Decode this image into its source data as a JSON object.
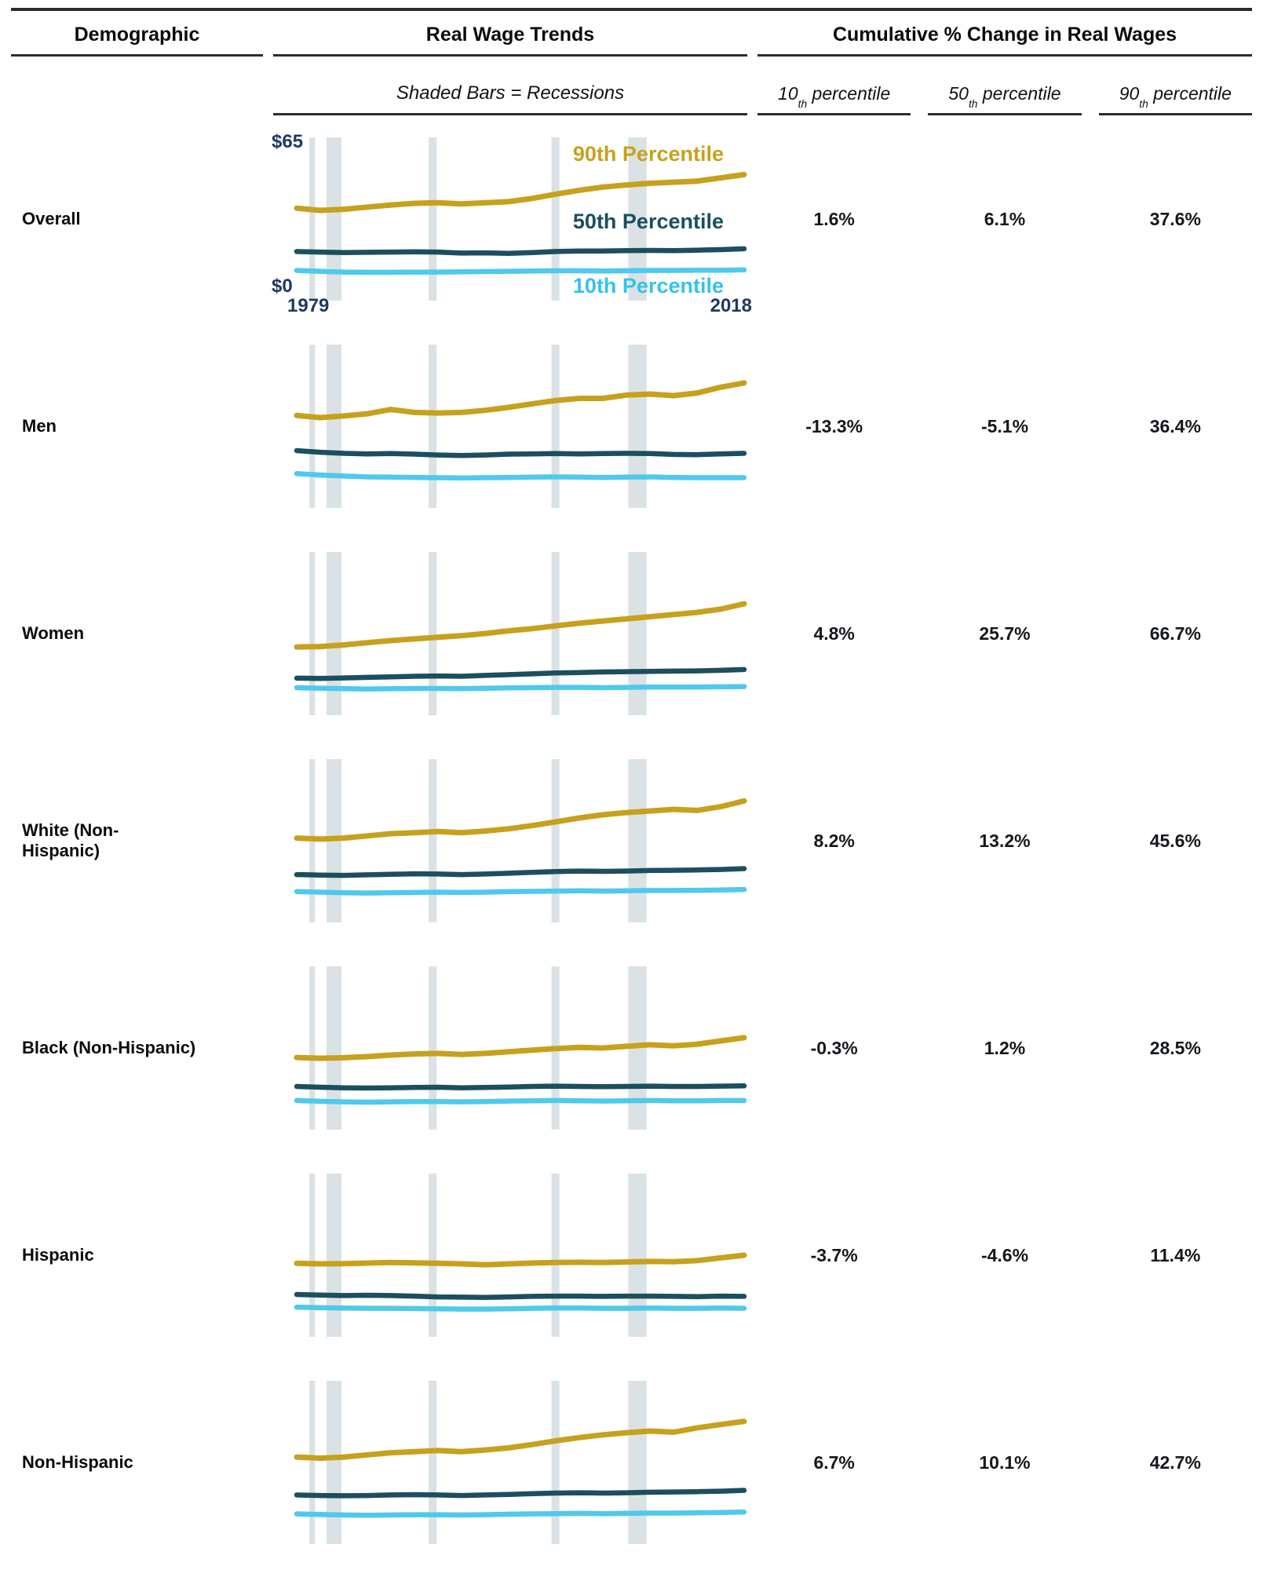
{
  "header": {
    "demographic": "Demographic",
    "trends": "Real Wage Trends",
    "cumulative": "Cumulative % Change in Real Wages"
  },
  "subheader": {
    "note": "Shaded Bars = Recessions"
  },
  "cum_cols": [
    {
      "base": "10",
      "sup": "th",
      "rest": " percentile"
    },
    {
      "base": "50",
      "sup": "th",
      "rest": " percentile"
    },
    {
      "base": "90",
      "sup": "th",
      "rest": " percentile"
    }
  ],
  "series_labels": {
    "p90": "90th Percentile",
    "p50": "50th Percentile",
    "p10": "10th Percentile"
  },
  "colors": {
    "gold": "#c7a11e",
    "teal": "#1b4f5e",
    "cyan": "#4fc9ed",
    "navy": "#1f3864",
    "band": "#dbe2e6",
    "rule": "#2c2c2c"
  },
  "chart_data": {
    "type": "line",
    "layout": "small-multiples, one sparkline chart per demographic row, shared x-axis 1979-2018",
    "x": {
      "min": 1979,
      "max": 2018,
      "label_start": "1979",
      "label_end": "2018"
    },
    "y": {
      "min": 0,
      "max": 65,
      "label_top": "$65",
      "label_bottom": "$0",
      "unit": "real hourly wage (dollars)"
    },
    "grid": false,
    "recessions_note": "Shaded Bars = Recessions",
    "recession_bands": [
      [
        1980.1,
        1980.6
      ],
      [
        1981.6,
        1982.9
      ],
      [
        1990.5,
        1991.2
      ],
      [
        2001.2,
        2001.9
      ],
      [
        2007.9,
        2009.5
      ]
    ],
    "series_names": [
      "10th Percentile",
      "50th Percentile",
      "90th Percentile"
    ],
    "rows": [
      {
        "label_lines": [
          "Overall"
        ],
        "annotated": true,
        "pct_change": {
          "p10": "1.6%",
          "p50": "6.1%",
          "p90": "37.6%"
        },
        "series": {
          "p90": [
            33,
            32.2,
            32.6,
            33.4,
            34.2,
            34.8,
            35,
            34.6,
            35,
            35.4,
            36.6,
            38.2,
            39.6,
            40.8,
            41.6,
            42.2,
            42.6,
            43,
            44.2,
            45.4
          ],
          "p50": [
            17,
            16.8,
            16.6,
            16.7,
            16.8,
            16.9,
            16.8,
            16.4,
            16.5,
            16.3,
            16.6,
            17,
            17.2,
            17.2,
            17.3,
            17.4,
            17.3,
            17.5,
            17.7,
            18
          ],
          "p10": [
            10,
            9.7,
            9.4,
            9.3,
            9.3,
            9.4,
            9.4,
            9.5,
            9.6,
            9.7,
            9.8,
            9.9,
            9.9,
            9.8,
            9.9,
            10,
            10,
            10.1,
            10.1,
            10.2
          ]
        }
      },
      {
        "label_lines": [
          "Men"
        ],
        "annotated": false,
        "pct_change": {
          "p10": "-13.3%",
          "p50": "-5.1%",
          "p90": "36.4%"
        },
        "series": {
          "p90": [
            33,
            32.2,
            32.8,
            33.6,
            35.2,
            34.1,
            33.9,
            34.1,
            34.9,
            36,
            37.3,
            38.5,
            39.3,
            39.3,
            40.5,
            40.9,
            40.3,
            41.3,
            43.4,
            45
          ],
          "p50": [
            20,
            19.4,
            19,
            18.8,
            18.9,
            18.7,
            18.4,
            18.2,
            18.4,
            18.7,
            18.8,
            18.9,
            18.8,
            18.9,
            19,
            18.9,
            18.6,
            18.5,
            18.8,
            19
          ],
          "p10": [
            11.5,
            11,
            10.6,
            10.3,
            10.2,
            10.1,
            10,
            9.9,
            10,
            10.1,
            10.2,
            10.3,
            10.2,
            10.1,
            10.2,
            10.3,
            10.1,
            10,
            10,
            10
          ]
        }
      },
      {
        "label_lines": [
          "Women"
        ],
        "annotated": false,
        "pct_change": {
          "p10": "4.8%",
          "p50": "25.7%",
          "p90": "66.7%"
        },
        "series": {
          "p90": [
            24,
            24.2,
            24.8,
            25.6,
            26.4,
            27,
            27.6,
            28.2,
            29,
            30,
            30.8,
            31.8,
            32.8,
            33.6,
            34.4,
            35.2,
            36,
            36.8,
            38,
            40
          ],
          "p50": [
            12.5,
            12.4,
            12.6,
            12.8,
            13,
            13.2,
            13.3,
            13.2,
            13.5,
            13.8,
            14.1,
            14.4,
            14.6,
            14.8,
            14.9,
            15,
            15.1,
            15.2,
            15.4,
            15.7
          ],
          "p10": [
            9,
            8.8,
            8.6,
            8.5,
            8.6,
            8.7,
            8.7,
            8.6,
            8.8,
            8.9,
            9,
            9.1,
            9.1,
            9,
            9.1,
            9.2,
            9.2,
            9.2,
            9.3,
            9.4
          ]
        }
      },
      {
        "label_lines": [
          "White (Non-",
          "Hispanic)"
        ],
        "annotated": false,
        "pct_change": {
          "p10": "8.2%",
          "p50": "13.2%",
          "p90": "45.6%"
        },
        "series": {
          "p90": [
            30,
            29.6,
            30,
            30.8,
            31.6,
            32,
            32.4,
            32,
            32.6,
            33.4,
            34.6,
            36,
            37.4,
            38.6,
            39.4,
            40,
            40.6,
            40.2,
            41.6,
            43.7
          ],
          "p50": [
            16.5,
            16.3,
            16.2,
            16.4,
            16.6,
            16.8,
            16.7,
            16.5,
            16.7,
            17,
            17.3,
            17.6,
            17.8,
            17.7,
            17.8,
            18,
            18.1,
            18.2,
            18.4,
            18.7
          ],
          "p10": [
            10.2,
            10,
            9.8,
            9.7,
            9.8,
            9.9,
            10,
            9.9,
            10,
            10.2,
            10.3,
            10.4,
            10.5,
            10.4,
            10.5,
            10.6,
            10.6,
            10.7,
            10.8,
            11
          ]
        }
      },
      {
        "label_lines": [
          "Black (Non-Hispanic)"
        ],
        "annotated": false,
        "pct_change": {
          "p10": "-0.3%",
          "p50": "1.2%",
          "p90": "28.5%"
        },
        "series": {
          "p90": [
            25.5,
            25.2,
            25.4,
            25.8,
            26.4,
            26.8,
            27,
            26.6,
            27,
            27.6,
            28.2,
            28.8,
            29.2,
            29,
            29.6,
            30.2,
            29.8,
            30.4,
            31.6,
            32.8
          ],
          "p50": [
            14.8,
            14.5,
            14.3,
            14.2,
            14.3,
            14.4,
            14.5,
            14.3,
            14.4,
            14.6,
            14.8,
            14.9,
            14.8,
            14.7,
            14.8,
            14.9,
            14.8,
            14.8,
            14.9,
            15
          ],
          "p10": [
            9.6,
            9.3,
            9.1,
            9,
            9.1,
            9.2,
            9.2,
            9.1,
            9.2,
            9.4,
            9.5,
            9.6,
            9.5,
            9.4,
            9.5,
            9.6,
            9.5,
            9.5,
            9.6,
            9.6
          ]
        }
      },
      {
        "label_lines": [
          "Hispanic"
        ],
        "annotated": false,
        "pct_change": {
          "p10": "-3.7%",
          "p50": "-4.6%",
          "p90": "11.4%"
        },
        "series": {
          "p90": [
            26,
            25.8,
            25.9,
            26.1,
            26.3,
            26.2,
            26,
            25.8,
            25.5,
            25.8,
            26.1,
            26.3,
            26.4,
            26.3,
            26.5,
            26.7,
            26.6,
            27,
            28,
            29
          ],
          "p50": [
            14.5,
            14.3,
            14.1,
            14.2,
            14.1,
            13.9,
            13.6,
            13.5,
            13.4,
            13.6,
            13.8,
            13.9,
            13.9,
            13.8,
            13.9,
            13.9,
            13.8,
            13.7,
            13.9,
            13.8
          ],
          "p10": [
            9.8,
            9.6,
            9.5,
            9.4,
            9.4,
            9.3,
            9.2,
            9.1,
            9.1,
            9.2,
            9.4,
            9.5,
            9.5,
            9.4,
            9.4,
            9.5,
            9.4,
            9.4,
            9.5,
            9.4
          ]
        }
      },
      {
        "label_lines": [
          "Non-Hispanic"
        ],
        "annotated": false,
        "pct_change": {
          "p10": "6.7%",
          "p50": "10.1%",
          "p90": "42.7%"
        },
        "series": {
          "p90": [
            31,
            30.6,
            31,
            31.8,
            32.6,
            33,
            33.4,
            33,
            33.6,
            34.4,
            35.6,
            37,
            38.2,
            39.2,
            40,
            40.6,
            40.2,
            41.8,
            43,
            44.2
          ],
          "p50": [
            17,
            16.8,
            16.7,
            16.8,
            17,
            17.1,
            17,
            16.8,
            17,
            17.2,
            17.5,
            17.7,
            17.8,
            17.7,
            17.8,
            18,
            18.1,
            18.2,
            18.4,
            18.7
          ],
          "p10": [
            10,
            9.8,
            9.6,
            9.5,
            9.6,
            9.7,
            9.7,
            9.6,
            9.7,
            9.9,
            10,
            10.1,
            10.2,
            10.1,
            10.2,
            10.3,
            10.3,
            10.4,
            10.5,
            10.7
          ]
        }
      }
    ]
  }
}
